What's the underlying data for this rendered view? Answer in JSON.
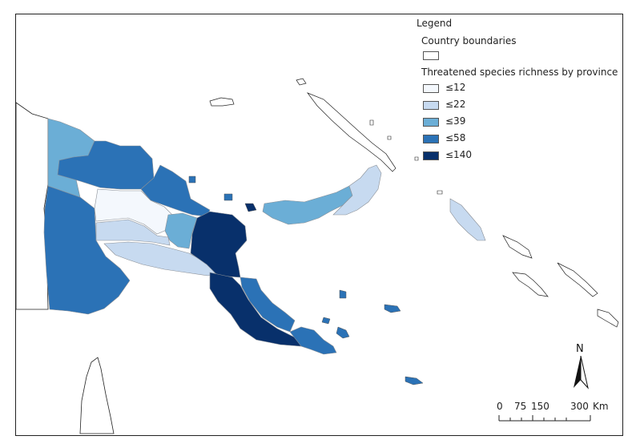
{
  "legend": {
    "title": "Legend",
    "country_boundaries_label": "Country boundaries",
    "richness_title": "Threatened species richness by province",
    "classes": [
      {
        "label": "≤12",
        "color": "#f4f8fd"
      },
      {
        "label": "≤22",
        "color": "#c7daf0"
      },
      {
        "label": "≤39",
        "color": "#6baed6"
      },
      {
        "label": "≤58",
        "color": "#2b72b6"
      },
      {
        "label": "≤140",
        "color": "#08306b"
      }
    ]
  },
  "north_arrow": {
    "letter": "N"
  },
  "scale_bar": {
    "ticks": [
      "0",
      "75",
      "150",
      "300"
    ],
    "unit": "Km"
  },
  "map": {
    "boundary_color": "#222222",
    "province_border_color": "#8a8f96"
  }
}
